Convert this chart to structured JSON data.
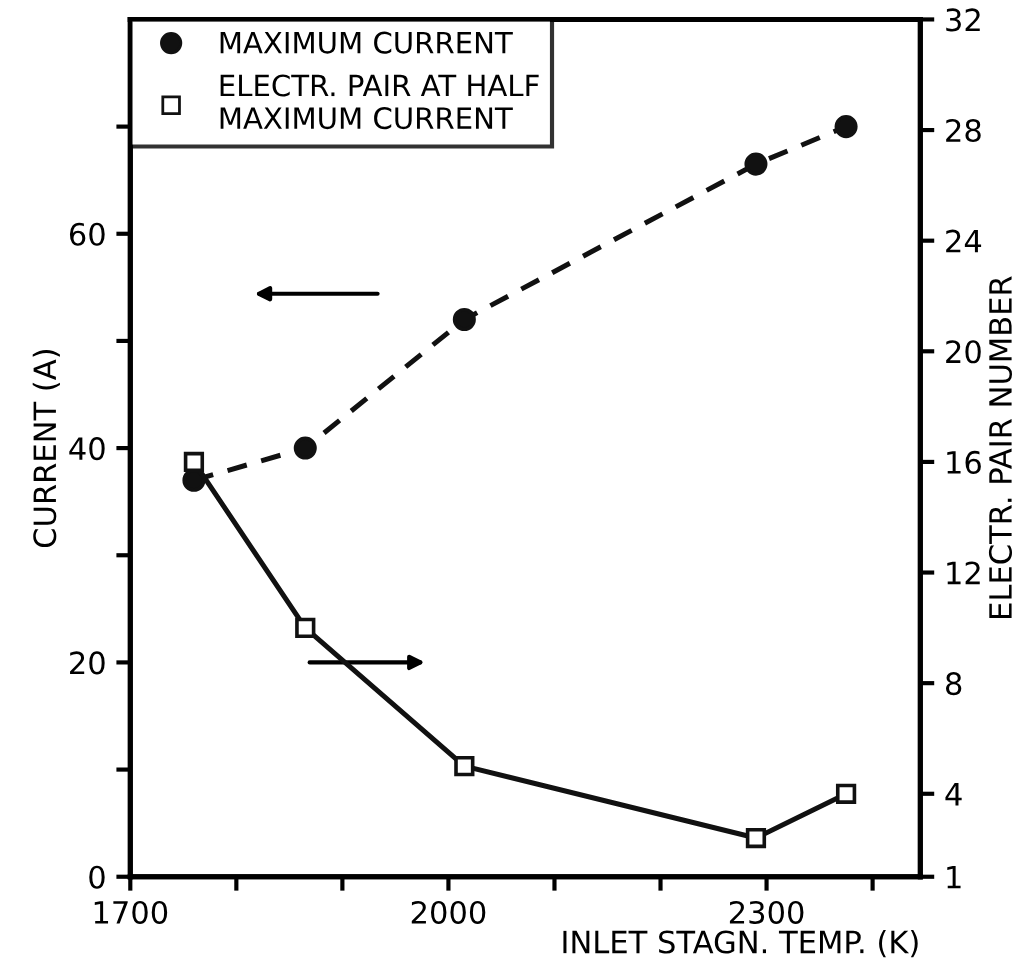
{
  "chart_data": {
    "type": "line",
    "xlabel": "INLET STAGN. TEMP. (K)",
    "ylabel": "CURRENT (A)",
    "y2label": "ELECTR. PAIR NUMBER",
    "xlim": [
      1700,
      2445
    ],
    "xticks": [
      1700,
      {
        "value": 1800,
        "label": null
      },
      {
        "value": 1900,
        "label": null
      },
      2000,
      {
        "value": 2100,
        "label": null
      },
      {
        "value": 2200,
        "label": null
      },
      2300,
      {
        "value": 2400,
        "label": null
      }
    ],
    "ylim": [
      0,
      80
    ],
    "yticks": [
      0,
      {
        "value": 10,
        "label": null
      },
      20,
      {
        "value": 30,
        "label": null
      },
      40,
      {
        "value": 50,
        "label": null
      },
      60,
      {
        "value": 70,
        "label": null
      }
    ],
    "y2lim": [
      1,
      32
    ],
    "y2ticks": [
      1,
      4,
      8,
      12,
      16,
      20,
      24,
      28,
      32
    ],
    "grid": false,
    "legend": "top left",
    "series": [
      {
        "name": "MAXIMUM CURRENT",
        "color": "#111111",
        "marker": "circle",
        "line_style": "dashed",
        "x": [
          1760,
          1865,
          2015,
          2290,
          2375
        ],
        "values": [
          37,
          40,
          52,
          66.5,
          70
        ]
      },
      {
        "name": "ELECTR. PAIR AT HALF\nMAXIMUM CURRENT",
        "color": "#111111",
        "marker": "square",
        "line_style": "solid",
        "axis": "y2",
        "x": [
          1760,
          1865,
          2015,
          2290,
          2375
        ],
        "values": [
          16,
          10,
          5,
          2.4,
          4
        ]
      }
    ]
  }
}
